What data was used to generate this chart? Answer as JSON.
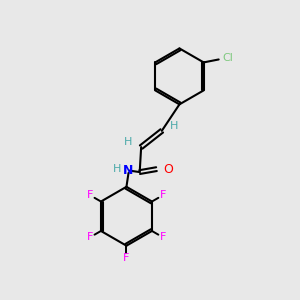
{
  "background_color": "#e8e8e8",
  "bond_color": "#000000",
  "atom_colors": {
    "Cl": "#7fc97f",
    "F": "#ff00ff",
    "N": "#0000ff",
    "O": "#ff0000",
    "H": "#4caaaa",
    "C": "#000000"
  },
  "figsize": [
    3.0,
    3.0
  ],
  "dpi": 100
}
